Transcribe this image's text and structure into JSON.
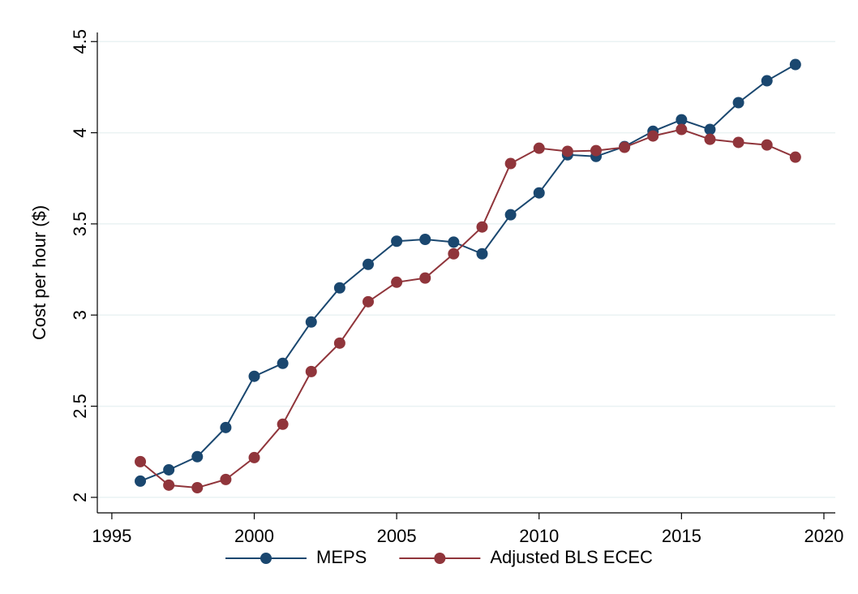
{
  "chart_data": {
    "type": "line",
    "y_label": "Cost per hour ($)",
    "x": [
      1996,
      1997,
      1998,
      1999,
      2000,
      2001,
      2002,
      2003,
      2004,
      2005,
      2006,
      2007,
      2008,
      2009,
      2010,
      2011,
      2012,
      2013,
      2014,
      2015,
      2016,
      2017,
      2018,
      2019
    ],
    "series": [
      {
        "name": "MEPS",
        "color": "#1a476f",
        "values": [
          2.089,
          2.151,
          2.223,
          2.383,
          2.664,
          2.735,
          2.962,
          3.149,
          3.278,
          3.405,
          3.415,
          3.4,
          3.336,
          3.55,
          3.67,
          3.879,
          3.87,
          3.924,
          4.008,
          4.071,
          4.018,
          4.165,
          4.285,
          4.374
        ]
      },
      {
        "name": "Adjusted BLS ECEC",
        "color": "#90353b",
        "values": [
          2.196,
          2.067,
          2.053,
          2.098,
          2.218,
          2.401,
          2.69,
          2.846,
          3.073,
          3.18,
          3.203,
          3.336,
          3.483,
          3.831,
          3.915,
          3.898,
          3.902,
          3.92,
          3.982,
          4.018,
          3.964,
          3.947,
          3.933,
          3.866
        ]
      }
    ],
    "xlim": [
      1994.49,
      2020.4
    ],
    "xticks": [
      1995,
      2000,
      2005,
      2010,
      2015,
      2020
    ],
    "ylim": [
      1.915,
      4.55
    ],
    "yticks": [
      2,
      2.5,
      3,
      3.5,
      4,
      4.5
    ],
    "grid": true,
    "legend": "bottom"
  }
}
